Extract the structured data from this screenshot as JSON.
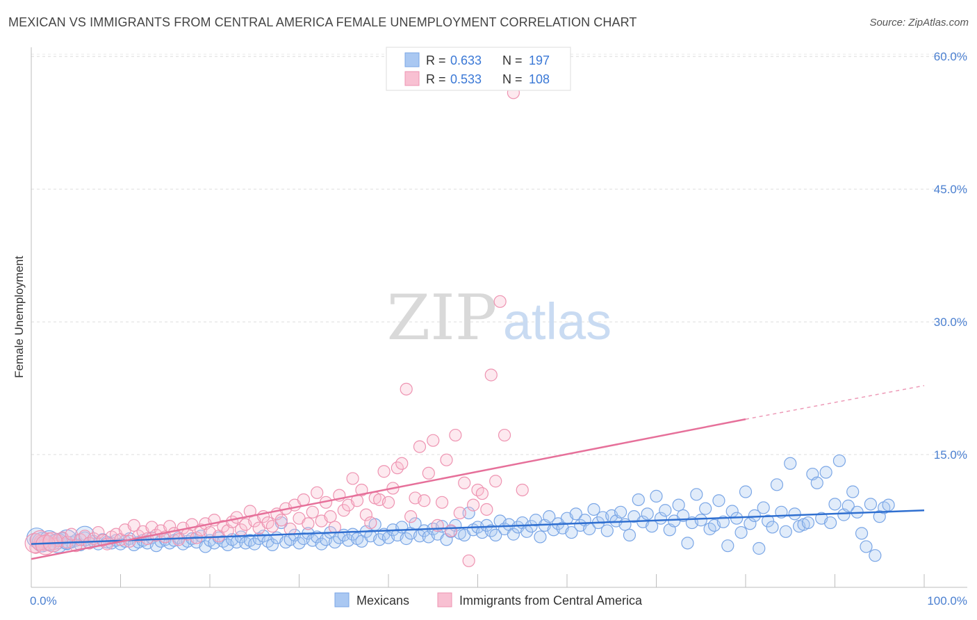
{
  "title": "MEXICAN VS IMMIGRANTS FROM CENTRAL AMERICA FEMALE UNEMPLOYMENT CORRELATION CHART",
  "source": "Source: ZipAtlas.com",
  "watermark": {
    "zip": "ZIP",
    "atlas": "atlas"
  },
  "chart_data": {
    "type": "scatter",
    "ylabel": "Female Unemployment",
    "xlabel": "",
    "x_ticks": [
      "0.0%",
      "100.0%"
    ],
    "y_ticks": [
      "15.0%",
      "30.0%",
      "45.0%",
      "60.0%"
    ],
    "y_tick_values": [
      15,
      30,
      45,
      60
    ],
    "xlim": [
      0,
      100
    ],
    "ylim": [
      0,
      63
    ],
    "grid": true,
    "legend_position": "top-center",
    "stats_legend": [
      {
        "r_label": "R =",
        "r_value": "0.633",
        "n_label": "N =",
        "n_value": "197",
        "color": "#aac8f2",
        "stroke": "#7aa6e6"
      },
      {
        "r_label": "R =",
        "r_value": "0.533",
        "n_label": "N =",
        "n_value": "108",
        "color": "#f8c0d2",
        "stroke": "#ee93b1"
      }
    ],
    "series": [
      {
        "name": "Mexicans",
        "color": "#7aa6e6",
        "fill": "rgba(170,200,242,0.35)",
        "trend": {
          "x0": 0,
          "y0": 4.9,
          "x1": 100,
          "y1": 8.7,
          "color": "#2f6fd0"
        },
        "points": [
          [
            0.5,
            5.4
          ],
          [
            1,
            5.0
          ],
          [
            1.5,
            5.2
          ],
          [
            2,
            4.8
          ],
          [
            2.5,
            5.3
          ],
          [
            3,
            5.0
          ],
          [
            3.5,
            5.5
          ],
          [
            4,
            4.9
          ],
          [
            4.5,
            5.1
          ],
          [
            5,
            5.3
          ],
          [
            5.5,
            4.8
          ],
          [
            6,
            5.6
          ],
          [
            6.5,
            5.0
          ],
          [
            7,
            5.2
          ],
          [
            7.5,
            4.9
          ],
          [
            8,
            5.4
          ],
          [
            8.5,
            5.1
          ],
          [
            9,
            5.0
          ],
          [
            9.5,
            5.3
          ],
          [
            10,
            4.9
          ],
          [
            10.5,
            5.2
          ],
          [
            11,
            5.5
          ],
          [
            11.5,
            4.8
          ],
          [
            12,
            5.1
          ],
          [
            12.5,
            5.3
          ],
          [
            13,
            5.0
          ],
          [
            13.5,
            5.6
          ],
          [
            14,
            4.7
          ],
          [
            14.5,
            5.2
          ],
          [
            15,
            5.4
          ],
          [
            15.5,
            5.0
          ],
          [
            16,
            5.3
          ],
          [
            16.5,
            5.6
          ],
          [
            17,
            4.9
          ],
          [
            17.5,
            5.2
          ],
          [
            18,
            5.5
          ],
          [
            18.5,
            5.1
          ],
          [
            19,
            5.8
          ],
          [
            19.5,
            4.6
          ],
          [
            20,
            5.3
          ],
          [
            20.5,
            5.0
          ],
          [
            21,
            5.6
          ],
          [
            21.5,
            5.2
          ],
          [
            22,
            4.8
          ],
          [
            22.5,
            5.4
          ],
          [
            23,
            5.1
          ],
          [
            23.5,
            5.7
          ],
          [
            24,
            5.0
          ],
          [
            24.5,
            5.3
          ],
          [
            25,
            4.9
          ],
          [
            25.5,
            5.5
          ],
          [
            26,
            5.8
          ],
          [
            26.5,
            5.2
          ],
          [
            27,
            4.8
          ],
          [
            27.5,
            5.6
          ],
          [
            28,
            7.3
          ],
          [
            28.5,
            5.1
          ],
          [
            29,
            5.4
          ],
          [
            29.5,
            5.9
          ],
          [
            30,
            5.0
          ],
          [
            30.5,
            5.5
          ],
          [
            31,
            6.1
          ],
          [
            31.5,
            5.3
          ],
          [
            32,
            5.7
          ],
          [
            32.5,
            4.9
          ],
          [
            33,
            5.4
          ],
          [
            33.5,
            6.2
          ],
          [
            34,
            5.1
          ],
          [
            34.5,
            5.6
          ],
          [
            35,
            5.9
          ],
          [
            35.5,
            5.3
          ],
          [
            36,
            6.0
          ],
          [
            36.5,
            5.5
          ],
          [
            37,
            5.2
          ],
          [
            37.5,
            6.3
          ],
          [
            38,
            5.8
          ],
          [
            38.5,
            7.1
          ],
          [
            39,
            5.4
          ],
          [
            39.5,
            6.0
          ],
          [
            40,
            5.6
          ],
          [
            40.5,
            6.5
          ],
          [
            41,
            5.9
          ],
          [
            41.5,
            6.8
          ],
          [
            42,
            5.5
          ],
          [
            42.5,
            6.1
          ],
          [
            43,
            7.2
          ],
          [
            43.5,
            5.8
          ],
          [
            44,
            6.4
          ],
          [
            44.5,
            5.7
          ],
          [
            45,
            6.6
          ],
          [
            45.5,
            6.0
          ],
          [
            46,
            6.9
          ],
          [
            46.5,
            5.4
          ],
          [
            47,
            6.3
          ],
          [
            47.5,
            7.0
          ],
          [
            48,
            6.1
          ],
          [
            48.5,
            5.9
          ],
          [
            49,
            8.4
          ],
          [
            49.5,
            6.5
          ],
          [
            50,
            6.8
          ],
          [
            50.5,
            6.2
          ],
          [
            51,
            7.0
          ],
          [
            51.5,
            6.4
          ],
          [
            52,
            5.9
          ],
          [
            52.5,
            7.5
          ],
          [
            53,
            6.6
          ],
          [
            53.5,
            7.1
          ],
          [
            54,
            6.0
          ],
          [
            54.5,
            6.8
          ],
          [
            55,
            7.3
          ],
          [
            55.5,
            6.3
          ],
          [
            56,
            6.9
          ],
          [
            56.5,
            7.6
          ],
          [
            57,
            5.7
          ],
          [
            57.5,
            7.0
          ],
          [
            58,
            8.0
          ],
          [
            58.5,
            6.5
          ],
          [
            59,
            7.2
          ],
          [
            59.5,
            6.7
          ],
          [
            60,
            7.8
          ],
          [
            60.5,
            6.2
          ],
          [
            61,
            8.3
          ],
          [
            61.5,
            7.0
          ],
          [
            62,
            7.6
          ],
          [
            62.5,
            6.6
          ],
          [
            63,
            8.8
          ],
          [
            63.5,
            7.3
          ],
          [
            64,
            7.9
          ],
          [
            64.5,
            6.4
          ],
          [
            65,
            8.1
          ],
          [
            65.5,
            7.5
          ],
          [
            66,
            8.5
          ],
          [
            66.5,
            7.1
          ],
          [
            67,
            5.9
          ],
          [
            67.5,
            8.0
          ],
          [
            68,
            9.9
          ],
          [
            68.5,
            7.4
          ],
          [
            69,
            8.3
          ],
          [
            69.5,
            6.9
          ],
          [
            70,
            10.3
          ],
          [
            70.5,
            7.8
          ],
          [
            71,
            8.7
          ],
          [
            71.5,
            6.5
          ],
          [
            72,
            7.5
          ],
          [
            72.5,
            9.3
          ],
          [
            73,
            8.1
          ],
          [
            73.5,
            5.0
          ],
          [
            74,
            7.3
          ],
          [
            74.5,
            10.5
          ],
          [
            75,
            7.6
          ],
          [
            75.5,
            8.9
          ],
          [
            76,
            6.6
          ],
          [
            76.5,
            7.0
          ],
          [
            77,
            9.8
          ],
          [
            77.5,
            7.4
          ],
          [
            78,
            4.7
          ],
          [
            78.5,
            8.6
          ],
          [
            79,
            7.8
          ],
          [
            79.5,
            6.2
          ],
          [
            80,
            10.8
          ],
          [
            80.5,
            7.2
          ],
          [
            81,
            8.1
          ],
          [
            81.5,
            4.4
          ],
          [
            82,
            9.0
          ],
          [
            82.5,
            7.5
          ],
          [
            83,
            6.8
          ],
          [
            83.5,
            11.6
          ],
          [
            84,
            8.5
          ],
          [
            84.5,
            6.3
          ],
          [
            85,
            14.0
          ],
          [
            85.5,
            8.3
          ],
          [
            86,
            6.9
          ],
          [
            86.5,
            7.1
          ],
          [
            87,
            7.3
          ],
          [
            87.5,
            12.8
          ],
          [
            88,
            11.8
          ],
          [
            88.5,
            7.8
          ],
          [
            89,
            13.0
          ],
          [
            89.5,
            7.3
          ],
          [
            90,
            9.4
          ],
          [
            90.5,
            14.3
          ],
          [
            91,
            8.2
          ],
          [
            91.5,
            9.2
          ],
          [
            92,
            10.8
          ],
          [
            92.5,
            8.5
          ],
          [
            93,
            6.1
          ],
          [
            93.5,
            4.6
          ],
          [
            94,
            9.4
          ],
          [
            94.5,
            3.6
          ],
          [
            95,
            8.0
          ],
          [
            95.5,
            9.0
          ],
          [
            96,
            9.3
          ]
        ],
        "big_points": [
          [
            0.6,
            5.6
          ],
          [
            1.2,
            5.1
          ],
          [
            2.0,
            5.3
          ],
          [
            3.0,
            5.0
          ],
          [
            4.0,
            5.4
          ],
          [
            6.0,
            5.8
          ]
        ]
      },
      {
        "name": "Immigrants from Central America",
        "color": "#ee93b1",
        "fill": "rgba(248,192,210,0.35)",
        "trend": {
          "x0": 0,
          "y0": 3.2,
          "x1": 80,
          "y1": 19.0,
          "x2": 100,
          "y2": 22.8,
          "color": "#e6709a"
        },
        "points": [
          [
            0.5,
            4.5
          ],
          [
            1,
            5.2
          ],
          [
            1.5,
            4.8
          ],
          [
            2,
            5.5
          ],
          [
            2.5,
            4.9
          ],
          [
            3,
            5.3
          ],
          [
            3.5,
            5.6
          ],
          [
            4,
            5.1
          ],
          [
            4.5,
            6.0
          ],
          [
            5,
            4.7
          ],
          [
            5.5,
            5.4
          ],
          [
            6,
            5.8
          ],
          [
            6.5,
            5.0
          ],
          [
            7,
            5.5
          ],
          [
            7.5,
            6.2
          ],
          [
            8,
            5.3
          ],
          [
            8.5,
            4.9
          ],
          [
            9,
            5.7
          ],
          [
            9.5,
            6.0
          ],
          [
            10,
            5.4
          ],
          [
            10.5,
            6.5
          ],
          [
            11,
            5.2
          ],
          [
            11.5,
            7.0
          ],
          [
            12,
            5.8
          ],
          [
            12.5,
            6.3
          ],
          [
            13,
            5.5
          ],
          [
            13.5,
            6.8
          ],
          [
            14,
            5.9
          ],
          [
            14.5,
            6.4
          ],
          [
            15,
            5.7
          ],
          [
            15.5,
            6.9
          ],
          [
            16,
            6.1
          ],
          [
            16.5,
            5.4
          ],
          [
            17,
            6.7
          ],
          [
            17.5,
            6.0
          ],
          [
            18,
            7.1
          ],
          [
            18.5,
            5.6
          ],
          [
            19,
            6.5
          ],
          [
            19.5,
            7.2
          ],
          [
            20,
            6.2
          ],
          [
            20.5,
            7.6
          ],
          [
            21,
            5.8
          ],
          [
            21.5,
            6.9
          ],
          [
            22,
            6.4
          ],
          [
            22.5,
            7.4
          ],
          [
            23,
            7.9
          ],
          [
            23.5,
            6.5
          ],
          [
            24,
            7.1
          ],
          [
            24.5,
            8.6
          ],
          [
            25,
            7.5
          ],
          [
            25.5,
            6.7
          ],
          [
            26,
            8.0
          ],
          [
            26.5,
            7.3
          ],
          [
            27,
            6.9
          ],
          [
            27.5,
            8.3
          ],
          [
            28,
            7.6
          ],
          [
            28.5,
            8.9
          ],
          [
            29,
            6.6
          ],
          [
            29.5,
            9.3
          ],
          [
            30,
            7.8
          ],
          [
            30.5,
            9.9
          ],
          [
            31,
            7.2
          ],
          [
            31.5,
            8.5
          ],
          [
            32,
            10.7
          ],
          [
            32.5,
            7.5
          ],
          [
            33,
            9.6
          ],
          [
            33.5,
            8.0
          ],
          [
            34,
            6.8
          ],
          [
            34.5,
            10.4
          ],
          [
            35,
            8.7
          ],
          [
            35.5,
            9.3
          ],
          [
            36,
            12.3
          ],
          [
            36.5,
            9.8
          ],
          [
            37,
            11.0
          ],
          [
            37.5,
            8.2
          ],
          [
            38,
            7.3
          ],
          [
            38.5,
            10.1
          ],
          [
            39,
            9.9
          ],
          [
            39.5,
            13.1
          ],
          [
            40,
            9.6
          ],
          [
            40.5,
            11.2
          ],
          [
            41,
            13.5
          ],
          [
            41.5,
            14.0
          ],
          [
            42,
            22.4
          ],
          [
            42.5,
            8.0
          ],
          [
            43,
            10.1
          ],
          [
            43.5,
            15.9
          ],
          [
            44,
            9.8
          ],
          [
            44.5,
            12.9
          ],
          [
            45,
            16.6
          ],
          [
            45.5,
            7.0
          ],
          [
            46,
            9.6
          ],
          [
            46.5,
            14.4
          ],
          [
            47,
            6.4
          ],
          [
            47.5,
            17.2
          ],
          [
            48,
            8.4
          ],
          [
            48.5,
            11.8
          ],
          [
            49,
            3.0
          ],
          [
            49.5,
            9.3
          ],
          [
            50,
            11.0
          ],
          [
            50.5,
            10.6
          ],
          [
            51,
            8.8
          ],
          [
            51.5,
            24.0
          ],
          [
            52,
            12.0
          ],
          [
            52.5,
            32.3
          ],
          [
            53,
            17.2
          ],
          [
            54,
            55.9
          ],
          [
            55,
            11.0
          ]
        ],
        "big_points": [
          [
            0.4,
            5.0
          ],
          [
            1.0,
            5.3
          ],
          [
            1.6,
            4.8
          ],
          [
            2.4,
            5.1
          ]
        ]
      }
    ]
  },
  "bottom_legend": [
    {
      "label": "Mexicans",
      "color": "#aac8f2",
      "stroke": "#7aa6e6"
    },
    {
      "label": "Immigrants from Central America",
      "color": "#f8c0d2",
      "stroke": "#ee93b1"
    }
  ]
}
